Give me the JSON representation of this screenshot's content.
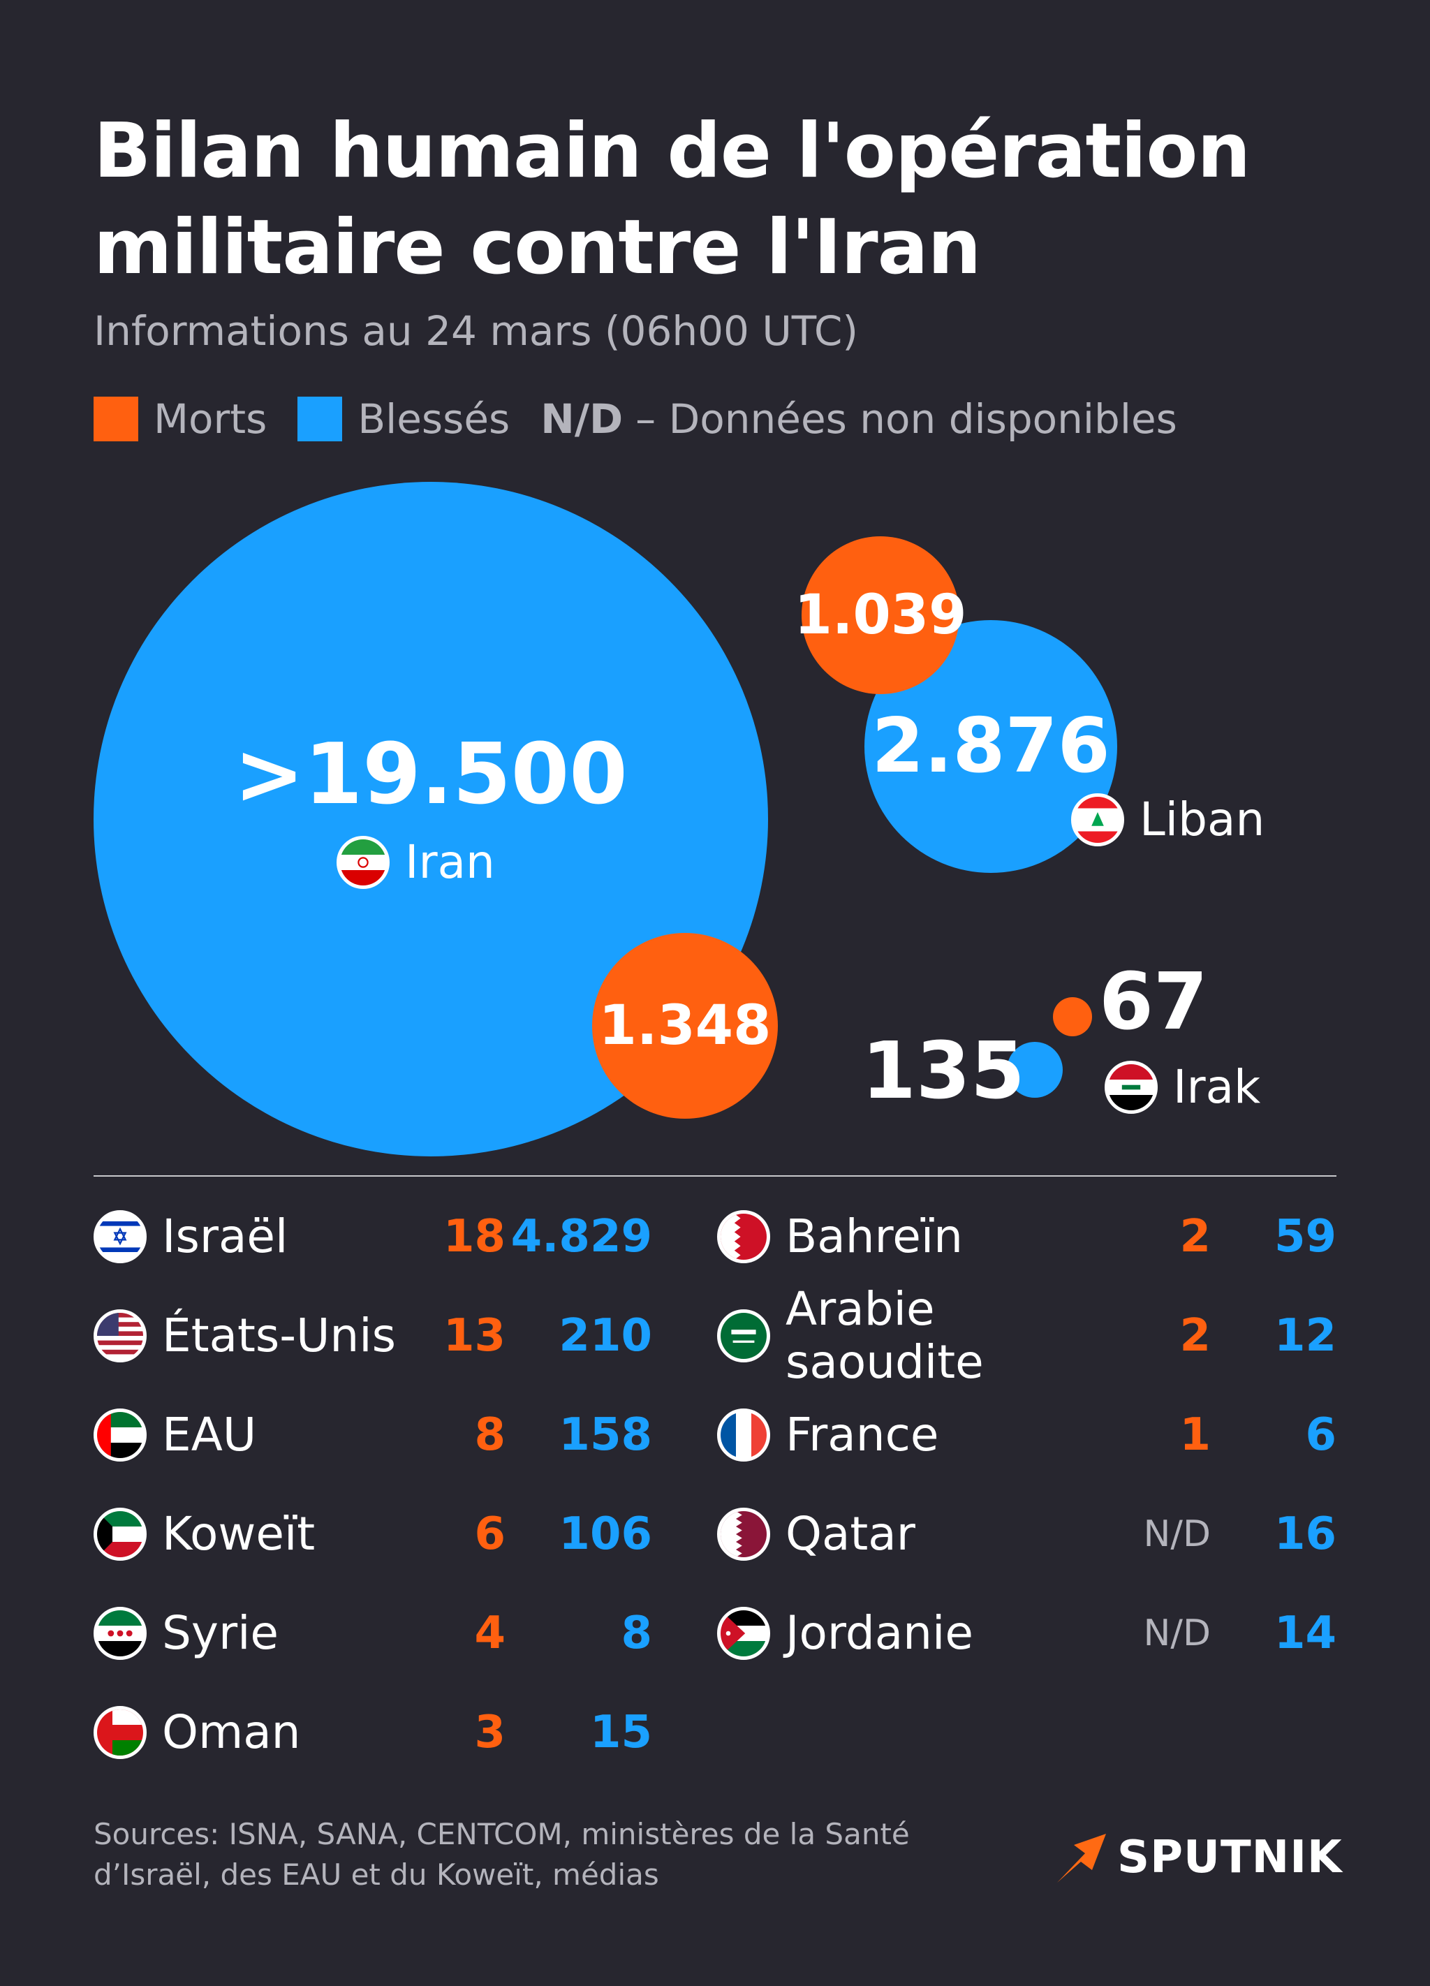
{
  "title_line1": "Bilan humain de l'opération",
  "title_line2": "militaire contre l'Iran",
  "subtitle": "Informations au 24 mars (06h00 UTC)",
  "legend": {
    "morts": "Morts",
    "blesses": "Blessés",
    "nd_key": "N/D",
    "nd_text": "– Données non disponibles"
  },
  "colors": {
    "background": "#27262f",
    "morts": "#ff6010",
    "blesses": "#1aa0ff"
  },
  "chart_data": {
    "type": "bubble",
    "series": [
      {
        "name": "Morts",
        "color": "#ff6010"
      },
      {
        "name": "Blessés",
        "color": "#1aa0ff"
      }
    ],
    "bubbles": [
      {
        "country": "Iran",
        "morts_label": "1.348",
        "morts": 1348,
        "blesses_label": ">19.500",
        "blesses": 19500
      },
      {
        "country": "Liban",
        "morts_label": "1.039",
        "morts": 1039,
        "blesses_label": "2.876",
        "blesses": 2876
      },
      {
        "country": "Irak",
        "morts_label": "67",
        "morts": 67,
        "blesses_label": "135",
        "blesses": 135
      }
    ],
    "table": {
      "left": [
        {
          "country": "Israël",
          "flag": "israel-flag-icon",
          "morts": "18",
          "blesses": "4.829"
        },
        {
          "country": "États-Unis",
          "flag": "usa-flag-icon",
          "morts": "13",
          "blesses": "210"
        },
        {
          "country": "EAU",
          "flag": "uae-flag-icon",
          "morts": "8",
          "blesses": "158"
        },
        {
          "country": "Koweït",
          "flag": "kuwait-flag-icon",
          "morts": "6",
          "blesses": "106"
        },
        {
          "country": "Syrie",
          "flag": "syria-flag-icon",
          "morts": "4",
          "blesses": "8"
        },
        {
          "country": "Oman",
          "flag": "oman-flag-icon",
          "morts": "3",
          "blesses": "15"
        }
      ],
      "right": [
        {
          "country": "Bahreïn",
          "flag": "bahrain-flag-icon",
          "morts": "2",
          "blesses": "59"
        },
        {
          "country": "Arabie\nsaoudite",
          "flag": "saudi-flag-icon",
          "morts": "2",
          "blesses": "12"
        },
        {
          "country": "France",
          "flag": "france-flag-icon",
          "morts": "1",
          "blesses": "6"
        },
        {
          "country": "Qatar",
          "flag": "qatar-flag-icon",
          "morts": "N/D",
          "blesses": "16"
        },
        {
          "country": "Jordanie",
          "flag": "jordan-flag-icon",
          "morts": "N/D",
          "blesses": "14"
        }
      ]
    }
  },
  "sources": "Sources: ISNA, SANA, CENTCOM, ministères de la Santé d’Israël, des EAU et du Koweït, médias",
  "logo": "SPUTNIK"
}
